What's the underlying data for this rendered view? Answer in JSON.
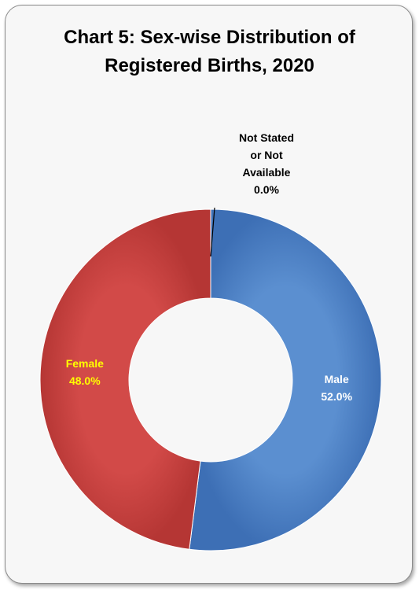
{
  "chart_data": {
    "type": "donut",
    "title": "Chart 5: Sex-wise Distribution of\nRegistered Births, 2020",
    "slices": [
      {
        "name": "Male",
        "value": 52.0,
        "label": "52.0%",
        "color": "#4f81bd",
        "label_color": "#ffffff"
      },
      {
        "name": "Female",
        "value": 48.0,
        "label": "48.0%",
        "color": "#c0504d",
        "label_color": "#ffff00"
      },
      {
        "name_lines": [
          "Not Stated",
          "or Not",
          "Available"
        ],
        "value": 0.0,
        "label": "0.0%",
        "color": "#9bbb59",
        "label_color": "#000000"
      }
    ],
    "legend": "none"
  },
  "colors": {
    "frame_border": "#8a8a8a",
    "background": "#f7f7f7"
  }
}
